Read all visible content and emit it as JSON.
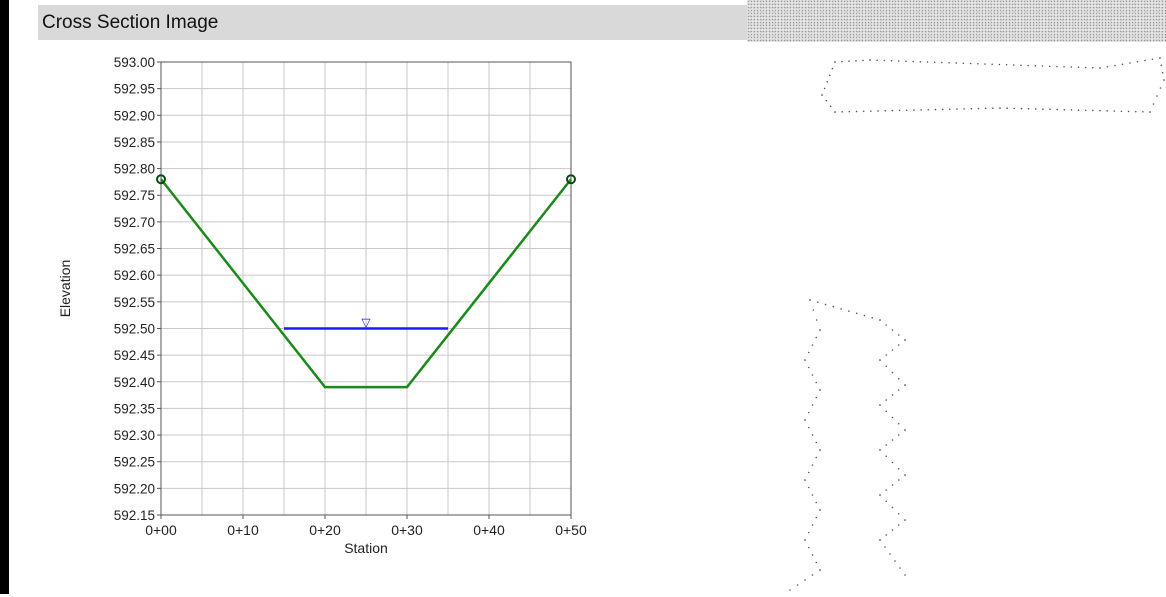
{
  "header": {
    "title": "Cross Section Image"
  },
  "colors": {
    "ground_line": "#1a8a1a",
    "water_line": "#1a1aff",
    "grid": "#c8c8c8",
    "header_bg": "#d9d9d9"
  },
  "chart_data": {
    "type": "line",
    "title": "",
    "xlabel": "Station",
    "ylabel": "Elevation",
    "xlim": [
      0,
      50
    ],
    "ylim": [
      592.15,
      593.0
    ],
    "grid": true,
    "x_ticks": [
      0,
      10,
      20,
      30,
      40,
      50
    ],
    "x_tick_labels": [
      "0+00",
      "0+10",
      "0+20",
      "0+30",
      "0+40",
      "0+50"
    ],
    "y_ticks": [
      593.0,
      592.95,
      592.9,
      592.85,
      592.8,
      592.75,
      592.7,
      592.65,
      592.6,
      592.55,
      592.5,
      592.45,
      592.4,
      592.35,
      592.3,
      592.25,
      592.2,
      592.15
    ],
    "y_tick_labels": [
      "593.00",
      "592.95",
      "592.90",
      "592.85",
      "592.80",
      "592.75",
      "592.70",
      "592.65",
      "592.60",
      "592.55",
      "592.50",
      "592.45",
      "592.40",
      "592.35",
      "592.30",
      "592.25",
      "592.20",
      "592.15"
    ],
    "series": [
      {
        "x": [
          0,
          20,
          30,
          50
        ],
        "y": [
          592.78,
          592.39,
          592.39,
          592.78
        ]
      },
      {
        "x": [
          15,
          35
        ],
        "y": [
          592.5,
          592.5
        ]
      }
    ],
    "water_surface_marker": {
      "x": 25,
      "y": 592.5,
      "symbol": "▽"
    },
    "endpoint_markers": [
      {
        "x": 0,
        "y": 592.78
      },
      {
        "x": 50,
        "y": 592.78
      }
    ]
  }
}
